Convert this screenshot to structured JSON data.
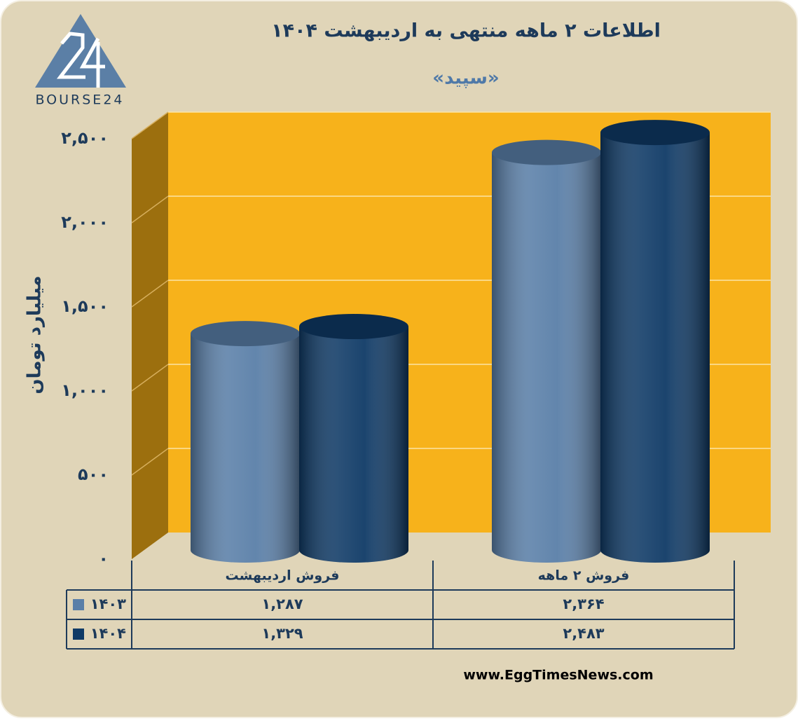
{
  "chart_data": {
    "type": "bar3d",
    "title": "اطلاعات ۲ ماهه منتهی به اردیبهشت ۱۴۰۴",
    "subtitle": "«سپید»",
    "y_label": "میلیارد تومان",
    "logo": "BOURSE24",
    "footer": "www.EggTimesNews.com",
    "categories": [
      "فروش اردیبهشت",
      "فروش ۲ ماهه"
    ],
    "series": [
      {
        "name": "۱۴۰۳",
        "color": "#5a7fa8",
        "values": [
          1287,
          2364
        ],
        "value_labels": [
          "۱,۲۸۷",
          "۲,۳۶۴"
        ]
      },
      {
        "name": "۱۴۰۴",
        "color": "#0f3a66",
        "values": [
          1329,
          2483
        ],
        "value_labels": [
          "۱,۳۲۹",
          "۲,۴۸۳"
        ]
      }
    ],
    "ylim": [
      0,
      2500
    ],
    "yticks": [
      {
        "value": 0,
        "label": "۰"
      },
      {
        "value": 500,
        "label": "۵۰۰"
      },
      {
        "value": 1000,
        "label": "۱,۰۰۰"
      },
      {
        "value": 1500,
        "label": "۱,۵۰۰"
      },
      {
        "value": 2000,
        "label": "۲,۰۰۰"
      },
      {
        "value": 2500,
        "label": "۲,۵۰۰"
      }
    ],
    "grid": true
  }
}
